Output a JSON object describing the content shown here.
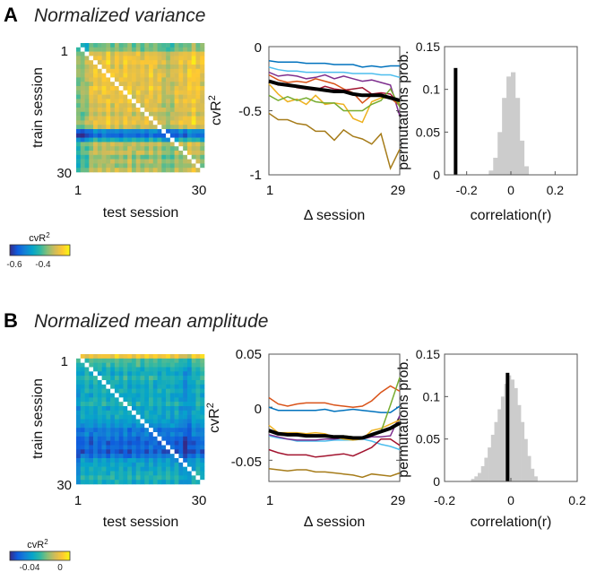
{
  "panels": [
    {
      "letter": "A",
      "title": "Normalized variance"
    },
    {
      "letter": "B",
      "title": "Normalized mean amplitude"
    }
  ],
  "colors": {
    "parula": [
      "#352A87",
      "#0F5CDD",
      "#1481D6",
      "#06A4CA",
      "#2EB7A4",
      "#87BF77",
      "#D1BB59",
      "#FEC832",
      "#F9FB0E"
    ],
    "series": [
      "#0072BD",
      "#4DBEEE",
      "#7E2F8E",
      "#D95319",
      "#A2142F",
      "#EDB120",
      "#77AC30",
      "#A67C1A"
    ],
    "mean": "#000000",
    "hist": "#CCCCCC"
  },
  "chart_data": [
    {
      "id": "A-heatmap",
      "type": "heatmap",
      "ylabel": "train session",
      "xlabel": "test session",
      "xticks": [
        "1",
        "30"
      ],
      "yticks": [
        "1",
        "30"
      ],
      "n": 30,
      "clim": [
        -0.65,
        -0.3
      ],
      "colorbar": {
        "label": "cvR",
        "label_sup": "2",
        "ticks": [
          "-0.6",
          "-0.4"
        ],
        "tick_values": [
          -0.6,
          -0.4
        ]
      },
      "row_means": [
        -0.45,
        -0.44,
        -0.38,
        -0.37,
        -0.36,
        -0.38,
        -0.37,
        -0.36,
        -0.37,
        -0.38,
        -0.36,
        -0.37,
        -0.38,
        -0.37,
        -0.39,
        -0.38,
        -0.4,
        -0.38,
        -0.37,
        -0.4,
        -0.56,
        -0.6,
        -0.5,
        -0.4,
        -0.42,
        -0.4,
        -0.44,
        -0.41,
        -0.43,
        -0.4
      ],
      "col_offsets": [
        -0.06,
        -0.05,
        -0.04,
        0,
        0.01,
        0,
        0.01,
        0.02,
        0,
        0.01,
        0,
        0.01,
        0.02,
        0,
        0.01,
        0,
        0,
        0.01,
        0,
        0,
        -0.02,
        -0.03,
        -0.02,
        0,
        0.01,
        0,
        0.02,
        0.03,
        0.01,
        0
      ]
    },
    {
      "id": "A-lines",
      "type": "line",
      "ylabel": "cvR",
      "ylabel_sup": "2",
      "xlabel": "Δ session",
      "xticks": [
        "1",
        "29"
      ],
      "yticks": [
        "0",
        "-0.5",
        "-1"
      ],
      "ytick_values": [
        0,
        -0.5,
        -1
      ],
      "xlim": [
        1,
        29
      ],
      "ylim": [
        -1,
        0
      ],
      "x": [
        1,
        3,
        5,
        7,
        9,
        11,
        13,
        15,
        17,
        19,
        21,
        23,
        25,
        27,
        29
      ],
      "series": [
        {
          "values": [
            -0.11,
            -0.12,
            -0.12,
            -0.12,
            -0.13,
            -0.13,
            -0.13,
            -0.14,
            -0.14,
            -0.14,
            -0.16,
            -0.15,
            -0.16,
            -0.15,
            -0.15
          ]
        },
        {
          "values": [
            -0.16,
            -0.18,
            -0.19,
            -0.19,
            -0.2,
            -0.2,
            -0.2,
            -0.2,
            -0.2,
            -0.21,
            -0.21,
            -0.21,
            -0.22,
            -0.22,
            -0.24
          ]
        },
        {
          "values": [
            -0.2,
            -0.23,
            -0.22,
            -0.23,
            -0.25,
            -0.24,
            -0.22,
            -0.25,
            -0.23,
            -0.25,
            -0.27,
            -0.26,
            -0.28,
            -0.3,
            -0.54
          ]
        },
        {
          "values": [
            -0.22,
            -0.26,
            -0.28,
            -0.27,
            -0.28,
            -0.25,
            -0.27,
            -0.29,
            -0.33,
            -0.36,
            -0.44,
            -0.38,
            -0.38,
            -0.4,
            -0.46
          ]
        },
        {
          "values": [
            -0.27,
            -0.3,
            -0.29,
            -0.32,
            -0.33,
            -0.34,
            -0.31,
            -0.33,
            -0.34,
            -0.33,
            -0.32,
            -0.37,
            -0.36,
            -0.37,
            -0.46
          ]
        },
        {
          "values": [
            -0.29,
            -0.37,
            -0.43,
            -0.41,
            -0.45,
            -0.38,
            -0.45,
            -0.44,
            -0.45,
            -0.56,
            -0.59,
            -0.43,
            -0.4,
            -0.4,
            -0.44
          ]
        },
        {
          "values": [
            -0.38,
            -0.42,
            -0.39,
            -0.42,
            -0.4,
            -0.43,
            -0.44,
            -0.44,
            -0.5,
            -0.5,
            -0.5,
            -0.45,
            -0.42,
            -0.33,
            -0.47
          ]
        },
        {
          "values": [
            -0.52,
            -0.57,
            -0.57,
            -0.6,
            -0.61,
            -0.66,
            -0.66,
            -0.73,
            -0.65,
            -0.7,
            -0.72,
            -0.76,
            -0.68,
            -0.95,
            -0.8
          ]
        }
      ],
      "mean": [
        -0.27,
        -0.29,
        -0.3,
        -0.31,
        -0.32,
        -0.33,
        -0.34,
        -0.35,
        -0.35,
        -0.37,
        -0.38,
        -0.38,
        -0.38,
        -0.4,
        -0.42
      ]
    },
    {
      "id": "A-hist",
      "type": "bar",
      "ylabel": "permutations prob.",
      "xlabel": "correlation(r)",
      "xlim": [
        -0.3,
        0.3
      ],
      "ylim": [
        0,
        0.15
      ],
      "xticks": [
        "-0.2",
        "0",
        "0.2"
      ],
      "xtick_values": [
        -0.2,
        0,
        0.2
      ],
      "yticks": [
        "0",
        "0.05",
        "0.1",
        "0.15"
      ],
      "ytick_values": [
        0,
        0.05,
        0.1,
        0.15
      ],
      "bin_width": 0.02,
      "bin_centers": [
        -0.09,
        -0.07,
        -0.05,
        -0.03,
        -0.01,
        0.01,
        0.03,
        0.05,
        0.07
      ],
      "values": [
        0.005,
        0.02,
        0.05,
        0.09,
        0.115,
        0.12,
        0.09,
        0.04,
        0.01
      ],
      "observed": {
        "r": -0.25,
        "prob": 0.125
      }
    },
    {
      "id": "B-heatmap",
      "type": "heatmap",
      "ylabel": "train session",
      "xlabel": "test session",
      "xticks": [
        "1",
        "30"
      ],
      "yticks": [
        "1",
        "30"
      ],
      "n": 30,
      "clim": [
        -0.05,
        0.01
      ],
      "colorbar": {
        "label": "cvR",
        "label_sup": "2",
        "ticks": [
          "-0.04",
          "0"
        ],
        "tick_values": [
          -0.04,
          0
        ]
      },
      "row_means": [
        0.0,
        -0.018,
        -0.02,
        -0.024,
        -0.026,
        -0.022,
        -0.025,
        -0.026,
        -0.024,
        -0.027,
        -0.025,
        -0.023,
        -0.028,
        -0.026,
        -0.027,
        -0.03,
        -0.032,
        -0.038,
        -0.036,
        -0.04,
        -0.042,
        -0.04,
        -0.043,
        -0.038,
        -0.03,
        -0.028,
        -0.027,
        -0.025,
        -0.023,
        -0.026
      ],
      "col_offsets": [
        -0.004,
        0,
        0.001,
        0,
        0.001,
        0,
        0.001,
        0,
        0,
        0.001,
        0,
        0.001,
        0,
        0,
        0.001,
        0,
        0,
        0.001,
        0,
        0,
        0,
        0.001,
        0,
        0,
        -0.002,
        -0.006,
        -0.005,
        0,
        0.002,
        0.001
      ]
    },
    {
      "id": "B-lines",
      "type": "line",
      "ylabel": "cvR",
      "ylabel_sup": "2",
      "xlabel": "Δ session",
      "xticks": [
        "1",
        "29"
      ],
      "yticks": [
        "0.05",
        "0",
        "-0.05"
      ],
      "ytick_values": [
        0.05,
        0,
        -0.05
      ],
      "xlim": [
        1,
        29
      ],
      "ylim": [
        -0.07,
        0.05
      ],
      "x": [
        1,
        3,
        5,
        7,
        9,
        11,
        13,
        15,
        17,
        19,
        21,
        23,
        25,
        27,
        29
      ],
      "series": [
        {
          "values": [
            0,
            -0.003,
            -0.003,
            -0.003,
            -0.003,
            -0.003,
            -0.002,
            -0.004,
            -0.003,
            -0.002,
            -0.003,
            -0.004,
            -0.005,
            -0.005,
            0.001
          ]
        },
        {
          "values": [
            -0.027,
            -0.029,
            -0.03,
            -0.032,
            -0.032,
            -0.032,
            -0.032,
            -0.031,
            -0.031,
            -0.031,
            -0.03,
            -0.032,
            -0.035,
            -0.037,
            -0.04
          ]
        },
        {
          "values": [
            -0.026,
            -0.028,
            -0.03,
            -0.031,
            -0.031,
            -0.031,
            -0.03,
            -0.03,
            -0.029,
            -0.029,
            -0.03,
            -0.028,
            -0.028,
            -0.027,
            -0.008
          ]
        },
        {
          "values": [
            0.009,
            0.003,
            0.001,
            0.003,
            0.004,
            0.004,
            0.004,
            0.002,
            0.001,
            0,
            0.001,
            0.006,
            0.014,
            0.02,
            0.015
          ]
        },
        {
          "values": [
            -0.04,
            -0.043,
            -0.045,
            -0.045,
            -0.045,
            -0.047,
            -0.046,
            -0.045,
            -0.044,
            -0.046,
            -0.042,
            -0.038,
            -0.03,
            -0.03,
            -0.036
          ]
        },
        {
          "values": [
            -0.017,
            -0.024,
            -0.024,
            -0.024,
            -0.025,
            -0.024,
            -0.025,
            -0.028,
            -0.03,
            -0.031,
            -0.03,
            -0.022,
            -0.02,
            -0.016,
            -0.012
          ]
        },
        {
          "values": [
            -0.023,
            -0.026,
            -0.026,
            -0.027,
            -0.027,
            -0.028,
            -0.028,
            -0.028,
            -0.027,
            -0.028,
            -0.028,
            -0.026,
            -0.023,
            0.002,
            0.028
          ]
        },
        {
          "values": [
            -0.058,
            -0.059,
            -0.06,
            -0.059,
            -0.059,
            -0.061,
            -0.061,
            -0.062,
            -0.063,
            -0.064,
            -0.066,
            -0.063,
            -0.064,
            -0.065,
            -0.062
          ]
        }
      ],
      "mean": [
        -0.022,
        -0.025,
        -0.026,
        -0.026,
        -0.027,
        -0.027,
        -0.027,
        -0.028,
        -0.028,
        -0.029,
        -0.029,
        -0.026,
        -0.023,
        -0.02,
        -0.015
      ]
    },
    {
      "id": "B-hist",
      "type": "bar",
      "ylabel": "permutations prob.",
      "xlabel": "correlation(r)",
      "xlim": [
        -0.2,
        0.2
      ],
      "ylim": [
        0,
        0.15
      ],
      "xticks": [
        "-0.2",
        "0",
        "0.2"
      ],
      "xtick_values": [
        -0.2,
        0,
        0.2
      ],
      "yticks": [
        "0",
        "0.05",
        "0.1",
        "0.15"
      ],
      "ytick_values": [
        0,
        0.05,
        0.1,
        0.15
      ],
      "bin_width": 0.01,
      "bin_centers": [
        -0.115,
        -0.105,
        -0.095,
        -0.085,
        -0.075,
        -0.065,
        -0.055,
        -0.045,
        -0.035,
        -0.025,
        -0.015,
        -0.005,
        0.005,
        0.015,
        0.025,
        0.035,
        0.045,
        0.055,
        0.065,
        0.075
      ],
      "values": [
        0.003,
        0.006,
        0.01,
        0.018,
        0.028,
        0.04,
        0.055,
        0.07,
        0.085,
        0.1,
        0.115,
        0.125,
        0.12,
        0.11,
        0.09,
        0.07,
        0.05,
        0.03,
        0.015,
        0.006
      ],
      "observed": {
        "r": -0.01,
        "prob": 0.128
      }
    }
  ]
}
